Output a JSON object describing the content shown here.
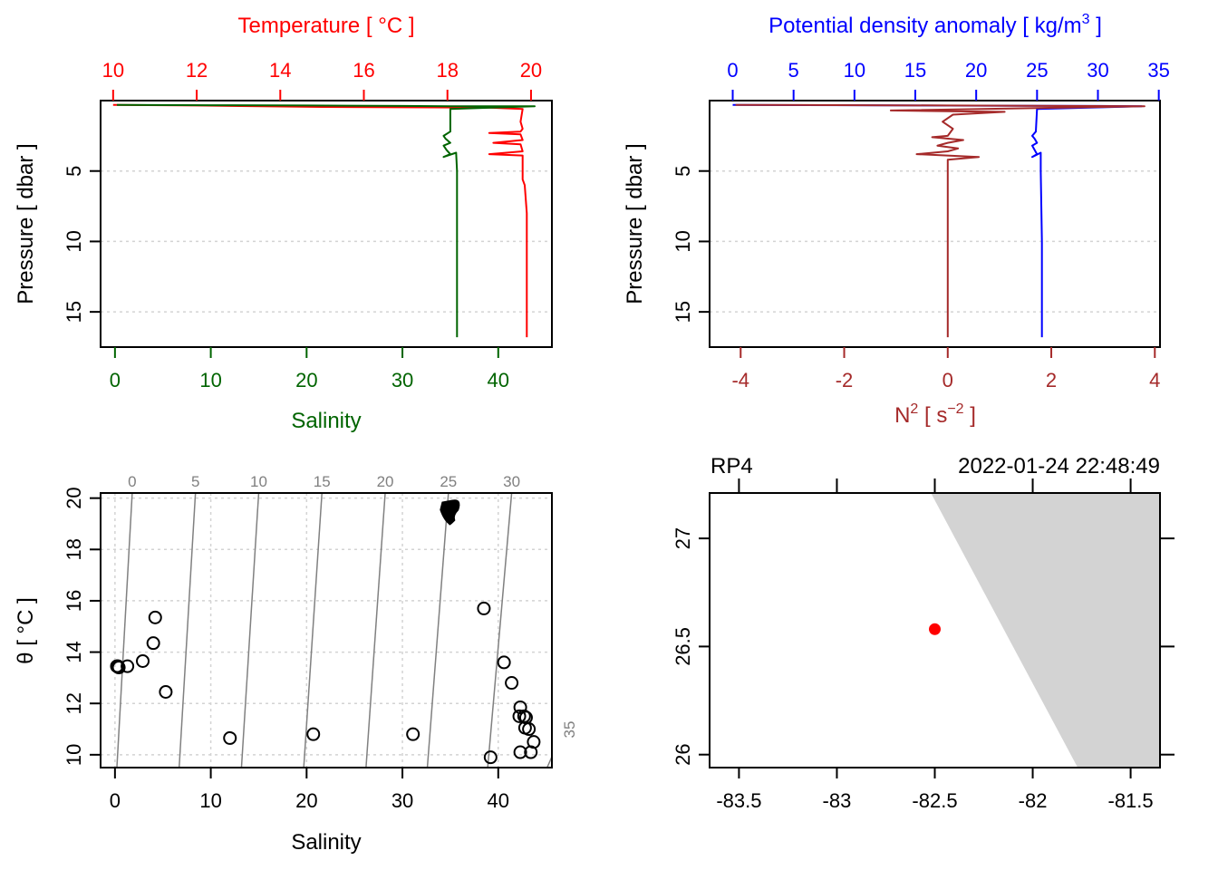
{
  "chart_data": [
    {
      "id": "ts_profile",
      "type": "line",
      "title": "",
      "top_axis": {
        "label": "Temperature [ °C ]",
        "color": "#ff0000",
        "ticks": [
          10,
          12,
          14,
          16,
          18,
          20
        ],
        "range": [
          9.7,
          20.5
        ]
      },
      "bottom_axis": {
        "label": "Salinity",
        "color": "#006400",
        "ticks": [
          0,
          10,
          20,
          30,
          40
        ],
        "range": [
          -1.5,
          45.6
        ]
      },
      "left_axis": {
        "label": "Pressure [ dbar ]",
        "ticks": [
          5,
          10,
          15
        ],
        "range": [
          17.5,
          0
        ],
        "reversed": true
      },
      "grid": "horizontal dotted",
      "series": [
        {
          "name": "Temperature",
          "color": "#ff0000",
          "x": [
            10.0,
            12.0,
            15.0,
            19.0,
            19.8,
            19.75,
            19.8,
            19.75,
            19.0,
            19.75,
            19.8,
            19.1,
            19.75,
            19.8,
            19.0,
            19.8,
            19.8,
            19.8,
            19.85,
            19.9,
            19.9,
            19.9,
            19.9
          ],
          "y": [
            0.3,
            0.35,
            0.45,
            0.5,
            0.6,
            1.5,
            2.0,
            2.2,
            2.3,
            2.4,
            2.8,
            3.0,
            3.1,
            3.6,
            3.8,
            3.9,
            4.0,
            5.6,
            6.0,
            8.0,
            10.0,
            15.0,
            16.8
          ]
        },
        {
          "name": "Salinity",
          "color": "#006400",
          "x": [
            0.2,
            10.0,
            20.0,
            30.0,
            35.0,
            43.8,
            35.0,
            35.0,
            34.3,
            34.5,
            35.0,
            34.3,
            34.6,
            35.0,
            34.3,
            35.6,
            35.7,
            35.7,
            35.7
          ],
          "y": [
            0.3,
            0.33,
            0.35,
            0.38,
            0.4,
            0.4,
            0.6,
            2.2,
            2.5,
            2.7,
            3.0,
            3.2,
            3.5,
            3.8,
            4.0,
            3.7,
            5.0,
            10.0,
            16.8
          ]
        }
      ]
    },
    {
      "id": "density_n2_profile",
      "type": "line",
      "top_axis": {
        "label": "Potential density anomaly [ kg/m3 ]",
        "label_main": "Potential density anomaly [ kg/m",
        "label_sup": "3",
        "label_end": " ]",
        "color": "#0000ff",
        "ticks": [
          0,
          5,
          10,
          15,
          20,
          25,
          30,
          35
        ],
        "range": [
          -1.9,
          35.1
        ]
      },
      "bottom_axis": {
        "label": "N2 [ s-2 ]",
        "label_main": "N",
        "label_sup": "2",
        "label_mid": " [ s",
        "label_sup2": "−2",
        "label_end": " ]",
        "color": "#a52a2a",
        "ticks": [
          -4,
          -2,
          0,
          2,
          4
        ],
        "range": [
          -4.6,
          4.1
        ]
      },
      "left_axis": {
        "label": "Pressure [ dbar ]",
        "ticks": [
          5,
          10,
          15
        ],
        "range": [
          17.5,
          0
        ],
        "reversed": true
      },
      "grid": "horizontal dotted",
      "series": [
        {
          "name": "Potential density anomaly",
          "color": "#0000ff",
          "x": [
            0.0,
            10.0,
            20.0,
            30.0,
            33.6,
            25.0,
            24.9,
            24.6,
            24.8,
            25.0,
            24.6,
            24.8,
            25.0,
            24.6,
            25.3,
            25.3,
            25.4,
            25.4
          ],
          "y": [
            0.3,
            0.33,
            0.36,
            0.38,
            0.4,
            0.6,
            2.2,
            2.5,
            2.7,
            3.0,
            3.2,
            3.5,
            3.8,
            4.0,
            3.7,
            5.0,
            10.0,
            16.8
          ]
        },
        {
          "name": "N2",
          "color": "#a52a2a",
          "x": [
            -4.1,
            0.0,
            3.8,
            -1.1,
            0.0,
            1.1,
            0.1,
            -0.1,
            0.1,
            0.0,
            -0.3,
            0.3,
            0.0,
            -0.2,
            0.2,
            0.0,
            -0.6,
            0.6,
            0.0,
            0.0
          ],
          "y": [
            0.3,
            0.35,
            0.4,
            0.7,
            0.75,
            0.8,
            1.0,
            1.5,
            2.0,
            2.5,
            2.6,
            2.8,
            3.0,
            3.2,
            3.4,
            3.6,
            3.8,
            4.0,
            4.2,
            16.8
          ]
        }
      ]
    },
    {
      "id": "ts_diagram",
      "type": "scatter",
      "bottom_axis": {
        "label": "Salinity",
        "ticks": [
          0,
          10,
          20,
          30,
          40
        ],
        "range": [
          -1.5,
          45.6
        ]
      },
      "left_axis": {
        "label": "θ [ °C ]",
        "ticks": [
          10,
          12,
          14,
          16,
          18,
          20
        ],
        "range": [
          9.5,
          20.2
        ]
      },
      "density_contours": {
        "color": "#808080",
        "labels": [
          "0",
          "5",
          "10",
          "15",
          "20",
          "25",
          "30",
          "35"
        ]
      },
      "grid": "dotted both",
      "points": [
        {
          "x": 0.2,
          "y": 13.45
        },
        {
          "x": 0.3,
          "y": 13.45
        },
        {
          "x": 0.4,
          "y": 13.4
        },
        {
          "x": 1.3,
          "y": 13.45
        },
        {
          "x": 2.9,
          "y": 13.65
        },
        {
          "x": 4.0,
          "y": 14.35
        },
        {
          "x": 4.2,
          "y": 15.35
        },
        {
          "x": 5.3,
          "y": 12.45
        },
        {
          "x": 12.0,
          "y": 10.65
        },
        {
          "x": 20.7,
          "y": 10.8
        },
        {
          "x": 31.1,
          "y": 10.8
        },
        {
          "x": 38.5,
          "y": 15.7
        },
        {
          "x": 39.2,
          "y": 9.9
        },
        {
          "x": 40.6,
          "y": 13.6
        },
        {
          "x": 41.4,
          "y": 12.8
        },
        {
          "x": 42.3,
          "y": 11.85
        },
        {
          "x": 42.2,
          "y": 11.5
        },
        {
          "x": 42.7,
          "y": 11.5
        },
        {
          "x": 42.9,
          "y": 11.45
        },
        {
          "x": 42.8,
          "y": 11.05
        },
        {
          "x": 43.2,
          "y": 11.0
        },
        {
          "x": 43.7,
          "y": 10.5
        },
        {
          "x": 42.3,
          "y": 10.1
        },
        {
          "x": 43.4,
          "y": 10.1
        }
      ],
      "cluster": {
        "x_range": [
          34.0,
          35.6
        ],
        "y_range": [
          19.0,
          19.9
        ],
        "description": "dense cluster of overlapping points"
      }
    },
    {
      "id": "station_map",
      "type": "scatter",
      "title_left": "RP4",
      "title_right": "2022-01-24 22:48:49",
      "bottom_axis": {
        "ticks": [
          -83.5,
          -83,
          -82.5,
          -82,
          -81.5
        ],
        "tick_labels": [
          "-83.5",
          "-83",
          "-82.5",
          "-82",
          "-81.5"
        ],
        "range": [
          -83.65,
          -81.35
        ]
      },
      "left_axis": {
        "ticks": [
          26,
          26.5,
          27
        ],
        "tick_labels": [
          "26",
          "26.5",
          "27"
        ],
        "range": [
          25.94,
          27.21
        ]
      },
      "land": {
        "color": "#d3d3d3",
        "polygon": [
          [
            -82.52,
            27.21
          ],
          [
            -81.35,
            27.21
          ],
          [
            -81.35,
            25.94
          ],
          [
            -81.77,
            25.94
          ]
        ]
      },
      "station": {
        "lon": -82.5,
        "lat": 26.58,
        "color": "#ff0000"
      }
    }
  ]
}
